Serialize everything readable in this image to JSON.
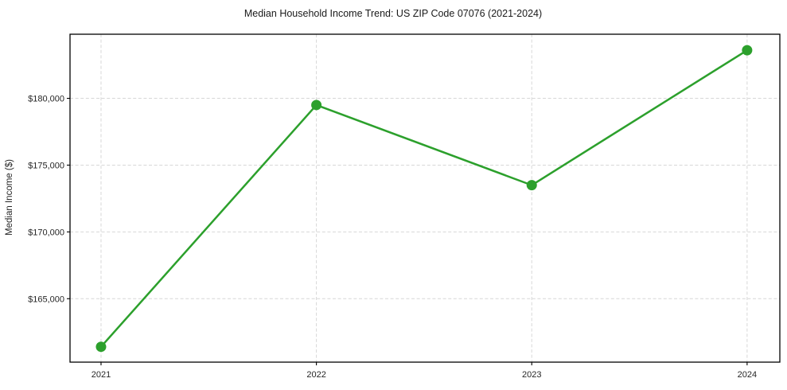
{
  "chart_data": {
    "type": "line",
    "title": "Median Household Income Trend: US ZIP Code 07076 (2021-2024)",
    "xlabel": "",
    "ylabel": "Median Income ($)",
    "x": [
      2021,
      2022,
      2023,
      2024
    ],
    "series": [
      {
        "name": "Median Household Income",
        "values": [
          161400,
          179500,
          173500,
          183600
        ]
      }
    ],
    "xticks": [
      2021,
      2022,
      2023,
      2024
    ],
    "xtick_labels": [
      "2021",
      "2022",
      "2023",
      "2024"
    ],
    "yticks": [
      165000,
      170000,
      175000,
      180000
    ],
    "ytick_labels": [
      "$165,000",
      "$170,000",
      "$175,000",
      "$180,000"
    ],
    "xlim": [
      2020.856,
      2024.152
    ],
    "ylim": [
      160250,
      184800
    ],
    "grid": true,
    "grid_style": "dashed",
    "legend": "none",
    "marker": "circle",
    "colors": {
      "line": "#2ca02c",
      "marker": "#2ca02c",
      "grid": "#d7d7d7",
      "spine": "#000000",
      "text": "#262626",
      "background": "#ffffff"
    }
  }
}
